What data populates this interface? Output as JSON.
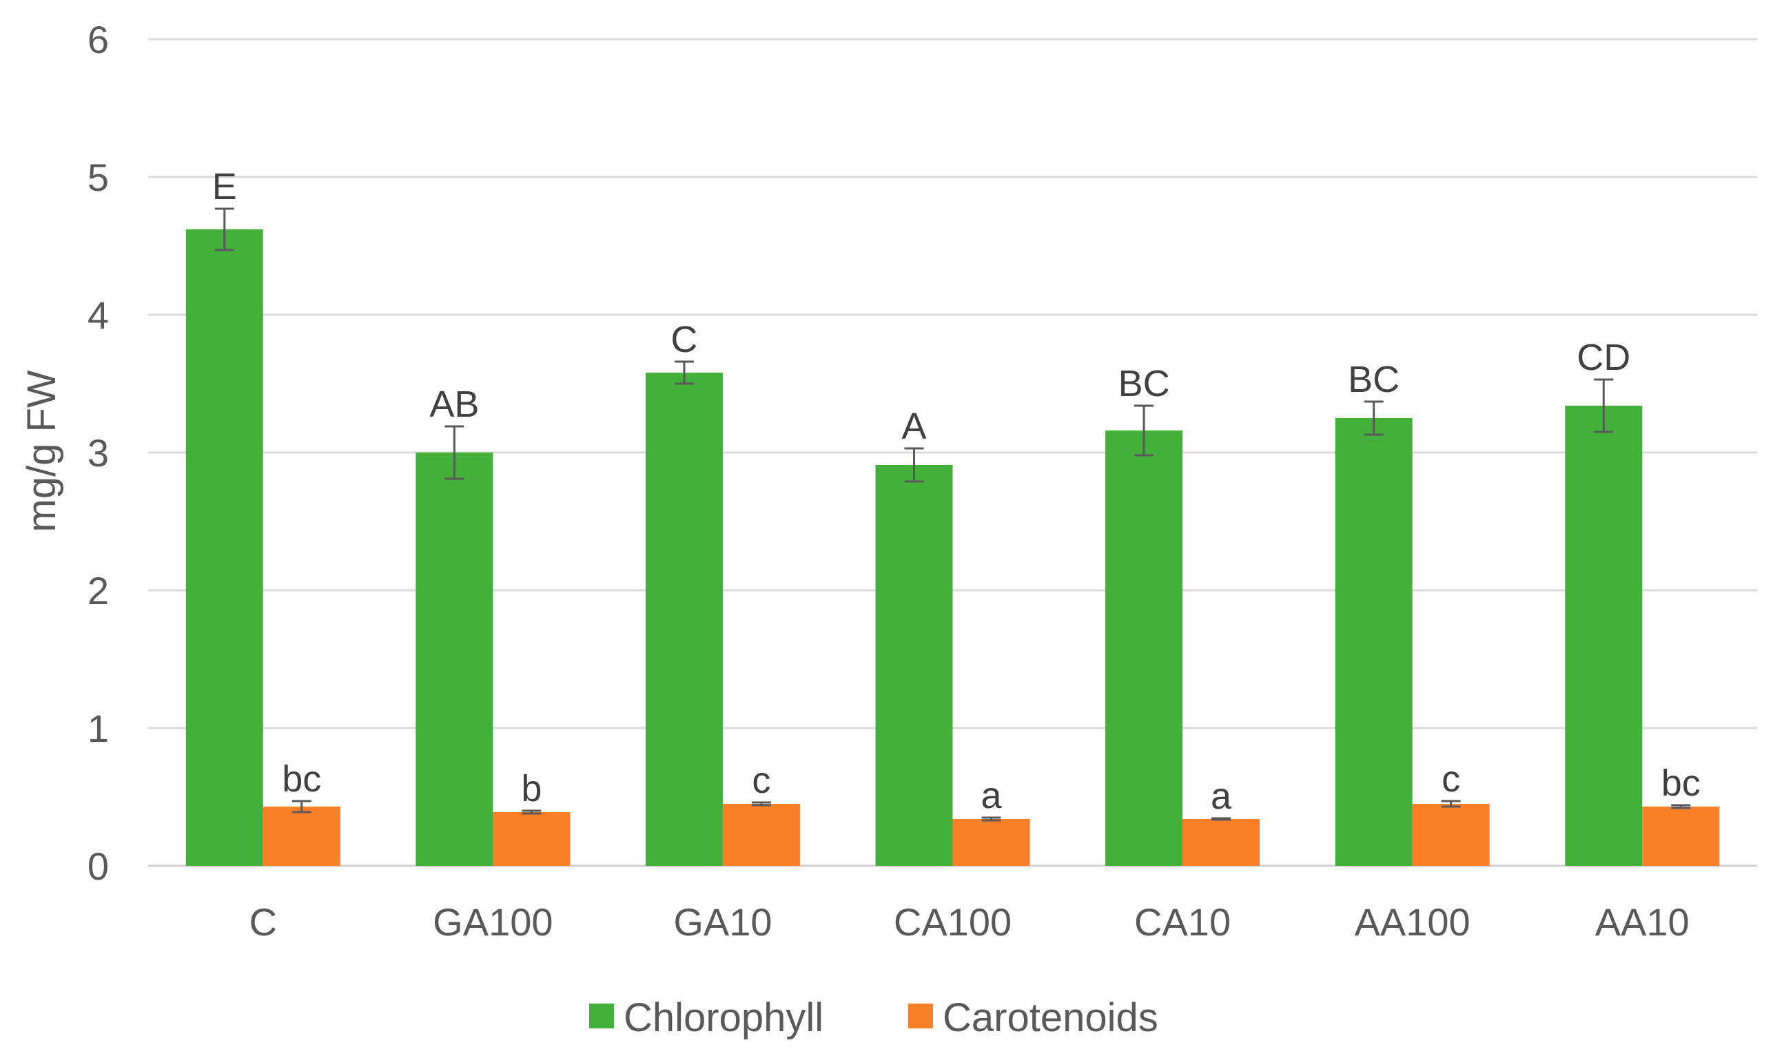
{
  "chart_data": {
    "type": "bar",
    "title": "",
    "xlabel": "",
    "ylabel": "mg/g FW",
    "ylim": [
      0,
      6
    ],
    "yticks": [
      0,
      1,
      2,
      3,
      4,
      5,
      6
    ],
    "grid": true,
    "legend_position": "bottom",
    "categories": [
      "C",
      "GA100",
      "GA10",
      "CA100",
      "CA10",
      "AA100",
      "AA10"
    ],
    "series": [
      {
        "name": "Chlorophyll",
        "color": "#44b03c",
        "values": [
          4.62,
          3.0,
          3.58,
          2.91,
          3.16,
          3.25,
          3.34
        ],
        "errors": [
          0.15,
          0.19,
          0.08,
          0.12,
          0.18,
          0.12,
          0.19
        ],
        "labels": [
          "E",
          "AB",
          "C",
          "A",
          "BC",
          "BC",
          "CD"
        ]
      },
      {
        "name": "Carotenoids",
        "color": "#fb7f27",
        "values": [
          0.43,
          0.39,
          0.45,
          0.34,
          0.34,
          0.45,
          0.43
        ],
        "errors": [
          0.04,
          0.01,
          0.01,
          0.01,
          0.005,
          0.02,
          0.01
        ],
        "labels": [
          "bc",
          "b",
          "c",
          "a",
          "a",
          "c",
          "bc"
        ]
      }
    ]
  }
}
